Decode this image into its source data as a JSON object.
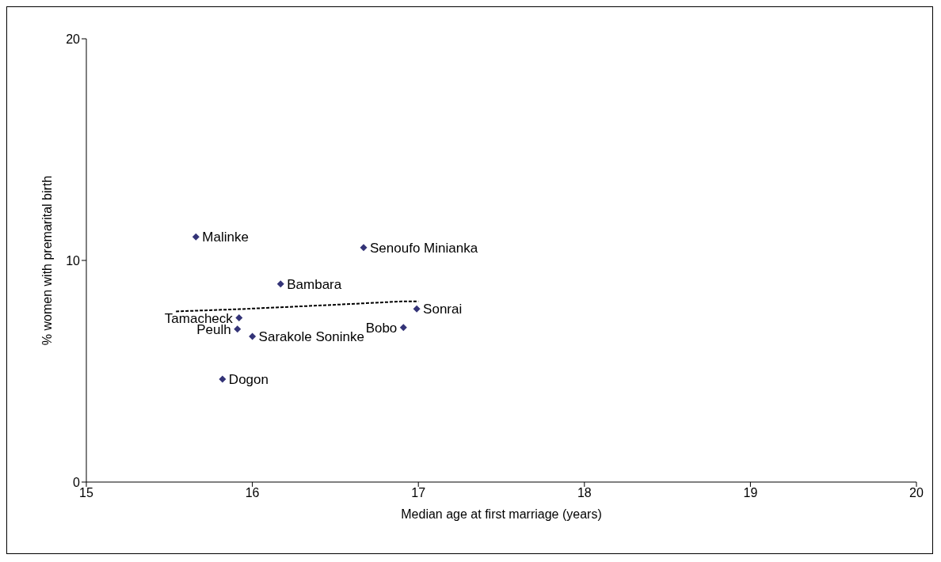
{
  "chart_data": {
    "type": "scatter",
    "xlabel": "Median age at first marriage (years)",
    "ylabel": "% women with premarital birth",
    "xlim": [
      15,
      20
    ],
    "xticks": [
      15,
      16,
      17,
      18,
      19,
      20
    ],
    "ylim": [
      0,
      20
    ],
    "yticks": [
      0,
      10,
      20
    ],
    "grid": false,
    "legend": false,
    "marker": "diamond",
    "series": [
      {
        "color": "#333377",
        "x": [
          15.66,
          16.67,
          16.17,
          16.99,
          15.92,
          15.91,
          16.91,
          16.0,
          15.82
        ],
        "values": [
          11.06,
          10.58,
          8.94,
          7.81,
          7.41,
          6.9,
          6.97,
          6.57,
          4.64
        ]
      },
      {
        "type": "line",
        "marker": "none",
        "color": "#000000",
        "line_style": "dashed",
        "x": [
          15.54,
          15.92,
          16.5,
          16.9,
          17.0
        ],
        "values": [
          7.7,
          7.8,
          8.0,
          8.15,
          8.15
        ]
      }
    ],
    "annotations": [
      {
        "text": "Malinke",
        "x": 15.66,
        "y": 11.06
      },
      {
        "text": "Senoufo Minianka",
        "x": 16.67,
        "y": 10.58
      },
      {
        "text": "Bambara",
        "x": 16.17,
        "y": 8.94
      },
      {
        "text": "Sonrai",
        "x": 16.99,
        "y": 7.81
      },
      {
        "text": "Tamacheck",
        "x": 15.92,
        "y": 7.41
      },
      {
        "text": "Peulh",
        "x": 15.91,
        "y": 6.9
      },
      {
        "text": "Bobo",
        "x": 16.91,
        "y": 6.97
      },
      {
        "text": "Sarakole Soninke",
        "x": 16.0,
        "y": 6.57
      },
      {
        "text": "Dogon",
        "x": 15.82,
        "y": 4.64
      }
    ]
  }
}
